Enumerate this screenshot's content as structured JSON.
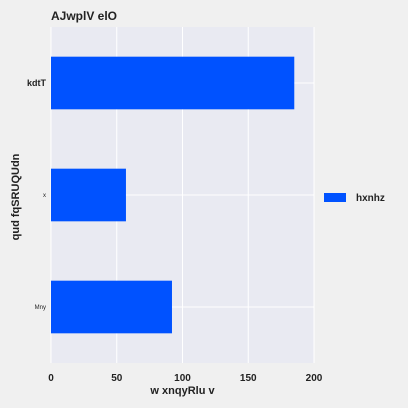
{
  "chart_data": {
    "type": "bar",
    "orientation": "horizontal",
    "title": "AJwplV elO",
    "xlabel": "w xnqyRlu v",
    "ylabel": "qud fqSRUQUdn",
    "categories": [
      "kdtT",
      "x",
      "Mny"
    ],
    "series": [
      {
        "name": "hxnhz",
        "values": [
          185,
          57,
          92
        ]
      }
    ],
    "xlim": [
      0,
      200
    ],
    "xticks": [
      0,
      50,
      100,
      150,
      200
    ],
    "grid": true,
    "legend_position": "right",
    "colors": {
      "bar": "#0052ff",
      "plot_background": "#e9eaf2",
      "figure_background": "#f0f0f0",
      "grid": "#ffffff"
    }
  }
}
